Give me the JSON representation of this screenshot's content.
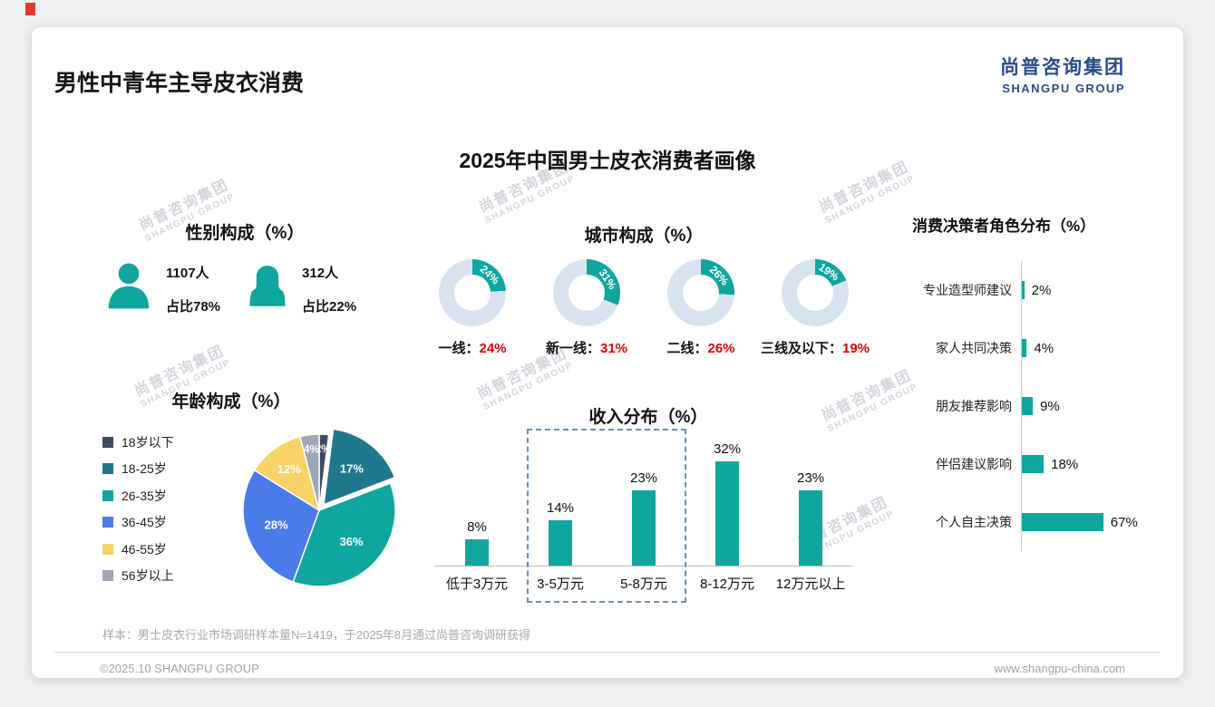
{
  "page": {
    "slide_title": "男性中青年主导皮衣消费",
    "main_title": "2025年中国男士皮衣消费者画像",
    "logo": {
      "cn": "尚普咨询集团",
      "en": "SHANGPU GROUP"
    },
    "watermark": {
      "line1": "尚普咨询集团",
      "line2": "SHANGPU GROUP"
    },
    "footer": {
      "note": "样本：男士皮衣行业市场调研样本量N=1419，于2025年8月通过尚普咨询调研获得",
      "copyright": "©2025.10 SHANGPU GROUP",
      "website": "www.shangpu-china.com"
    }
  },
  "colors": {
    "teal": "#0fa6a0",
    "donut_rest": "#d9e3f0",
    "red": "#e00000",
    "navy_logo": "#2b4b8c"
  },
  "gender": {
    "heading": "性别构成（%）",
    "male": {
      "count": "1107人",
      "share": "占比78%"
    },
    "female": {
      "count": "312人",
      "share": "占比22%"
    }
  },
  "city": {
    "heading": "城市构成（%）",
    "items": [
      {
        "name": "一线",
        "value": 24
      },
      {
        "name": "新一线",
        "value": 31
      },
      {
        "name": "二线",
        "value": 26
      },
      {
        "name": "三线及以下",
        "value": 19
      }
    ]
  },
  "age": {
    "heading": "年龄构成（%）",
    "slices": [
      {
        "label": "18岁以下",
        "value": 2,
        "color": "#3e4a62",
        "explode": false
      },
      {
        "label": "18-25岁",
        "value": 17,
        "color": "#20788c",
        "explode": true
      },
      {
        "label": "26-35岁",
        "value": 36,
        "color": "#0fa6a0",
        "explode": false
      },
      {
        "label": "36-45岁",
        "value": 28,
        "color": "#4a7be8",
        "explode": false
      },
      {
        "label": "46-55岁",
        "value": 12,
        "color": "#f8d266",
        "explode": false
      },
      {
        "label": "56岁以上",
        "value": 4,
        "color": "#9fa8b5",
        "explode": false
      }
    ]
  },
  "income": {
    "heading": "收入分布（%）",
    "categories": [
      "低于3万元",
      "3-5万元",
      "5-8万元",
      "8-12万元",
      "12万元以上"
    ],
    "values": [
      8,
      14,
      23,
      32,
      23
    ]
  },
  "decision": {
    "heading": "消费决策者角色分布（%）",
    "categories": [
      "专业造型师建议",
      "家人共同决策",
      "朋友推荐影响",
      "伴侣建议影响",
      "个人自主决策"
    ],
    "values": [
      2,
      4,
      9,
      18,
      67
    ]
  },
  "chart_data": [
    {
      "type": "table",
      "title": "性别构成（%）",
      "categories": [
        "男",
        "女"
      ],
      "series": [
        {
          "name": "人数",
          "values": [
            1107,
            312
          ]
        },
        {
          "name": "占比%",
          "values": [
            78,
            22
          ]
        }
      ]
    },
    {
      "type": "pie",
      "variant": "donut-multiples",
      "title": "城市构成（%）",
      "categories": [
        "一线",
        "新一线",
        "二线",
        "三线及以下"
      ],
      "values": [
        24,
        31,
        26,
        19
      ],
      "legend_position": "below-each-donut",
      "value_label_color": "red"
    },
    {
      "type": "pie",
      "title": "年龄构成（%）",
      "categories": [
        "18岁以下",
        "18-25岁",
        "26-35岁",
        "36-45岁",
        "46-55岁",
        "56岁以上"
      ],
      "values": [
        2,
        17,
        36,
        28,
        12,
        4
      ],
      "legend_position": "left",
      "exploded_slice": "18-25岁"
    },
    {
      "type": "bar",
      "title": "收入分布（%）",
      "categories": [
        "低于3万元",
        "3-5万元",
        "5-8万元",
        "8-12万元",
        "12万元以上"
      ],
      "values": [
        8,
        14,
        23,
        32,
        23
      ],
      "ylim": [
        0,
        35
      ],
      "grid": false,
      "annotation": "dashed-box around 3-5万元 and 5-8万元"
    },
    {
      "type": "bar",
      "orientation": "horizontal",
      "title": "消费决策者角色分布（%）",
      "categories": [
        "专业造型师建议",
        "家人共同决策",
        "朋友推荐影响",
        "伴侣建议影响",
        "个人自主决策"
      ],
      "values": [
        2,
        4,
        9,
        18,
        67
      ],
      "xlim": [
        0,
        70
      ],
      "grid": false
    }
  ]
}
